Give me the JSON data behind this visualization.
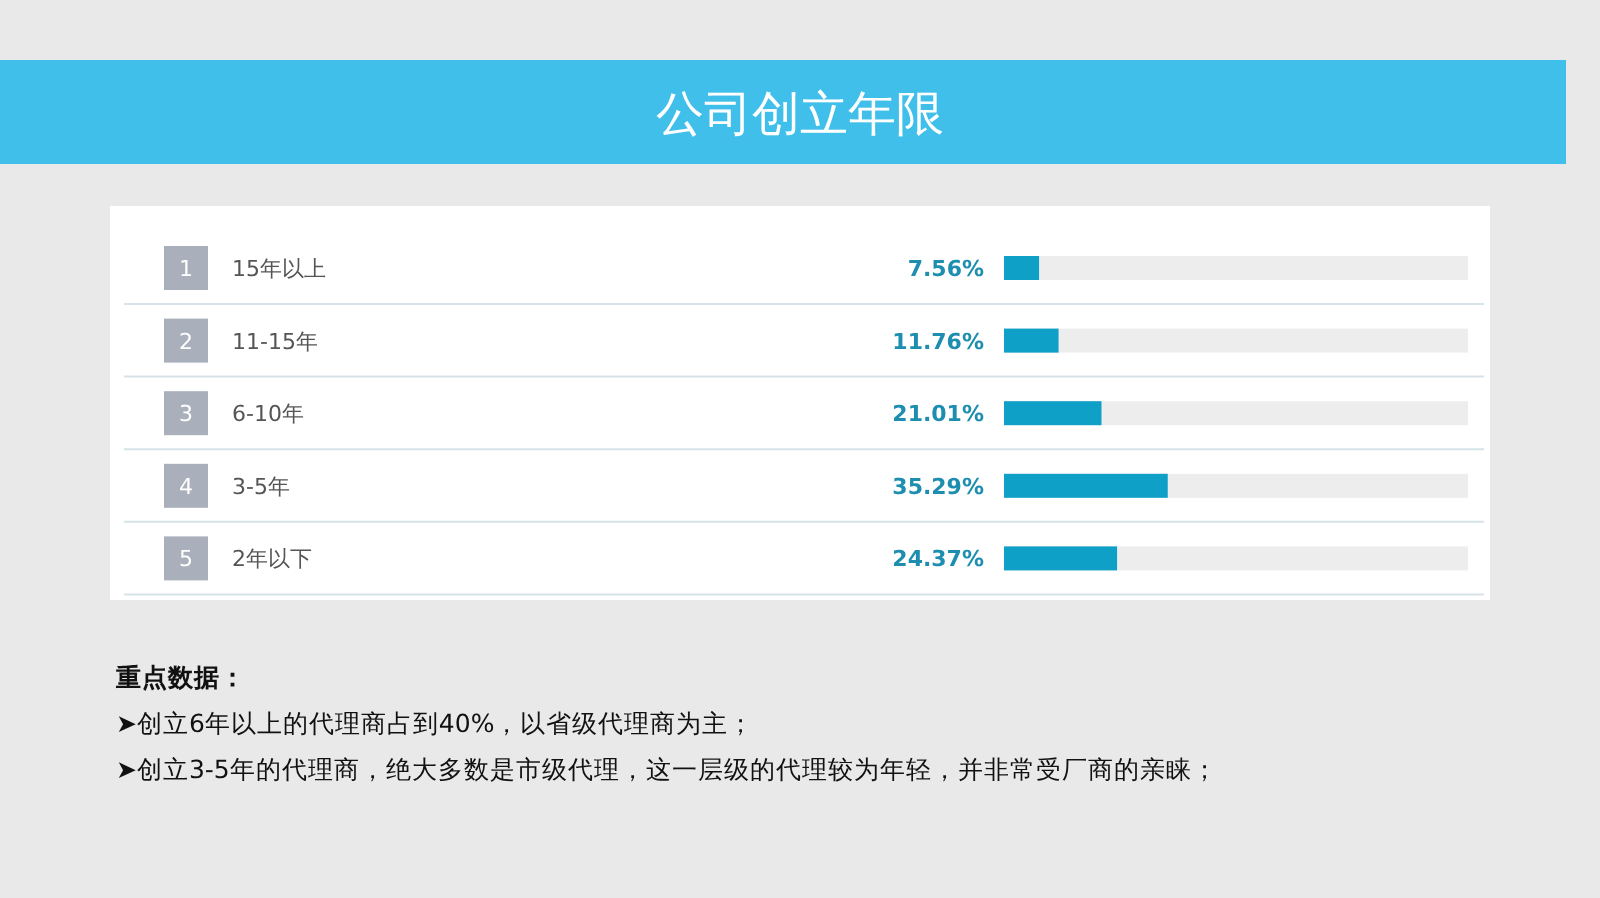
{
  "chart_data": {
    "type": "bar",
    "orientation": "horizontal",
    "title": "公司创立年限",
    "categories": [
      "15年以上",
      "11-15年",
      "6-10年",
      "3-5年",
      "2年以下"
    ],
    "values": [
      7.56,
      11.76,
      21.01,
      35.29,
      24.37
    ],
    "value_labels": [
      "7.56%",
      "11.76%",
      "21.01%",
      "35.29%",
      "24.37%"
    ],
    "color": "#0fa0c8",
    "xlim": [
      0,
      100
    ],
    "annotations": [
      "1",
      "2",
      "3",
      "4",
      "5",
      "重点数据：",
      "➤创立6年以上的代理商占到40%，以省级代理商为主；",
      "➤创立3-5年的代理商，绝大多数是市级代理，这一层级的代理较为年轻，并非常受厂商的亲睐；"
    ]
  }
}
